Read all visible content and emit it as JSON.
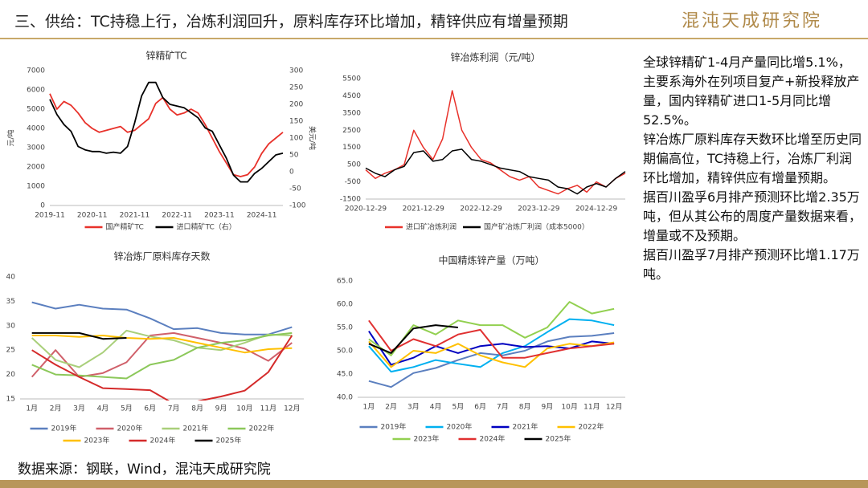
{
  "header": {
    "title": "三、供给：TC持稳上行，冶炼利润回升，原料库存环比增加，精锌供应有增量预期",
    "logo": "混沌天成研究院"
  },
  "notes": [
    "全球锌精矿1-4月产量同比增5.1%，主要系海外在列项目复产+新投释放产量，国内锌精矿进口1-5月同比增52.5%。",
    "锌冶炼厂原料库存天数环比增至历史同期偏高位，TC持稳上行，冶炼厂利润环比增加，精锌供应有增量预期。",
    "据百川盈孚6月排产预测环比增2.35万吨，但从其公布的周度产量数据来看，增量或不及预期。",
    "据百川盈孚7月排产预测环比增1.17万吨。"
  ],
  "source": "数据来源：钢联，Wind，混沌天成研究院",
  "chart_data": [
    {
      "type": "line",
      "title": "锌精矿TC",
      "yaxis_label": "元/吨",
      "y2axis_label": "美元/吨",
      "categories": [
        "2019-11",
        null,
        null,
        null,
        null,
        null,
        "2020-11",
        null,
        null,
        null,
        null,
        null,
        "2021-11",
        null,
        null,
        null,
        null,
        null,
        "2022-11",
        null,
        null,
        null,
        null,
        null,
        "2023-11",
        null,
        null,
        null,
        null,
        null,
        "2024-11",
        null,
        null,
        null
      ],
      "series": [
        {
          "name": "国产精矿TC",
          "color": "#e8312a",
          "values": [
            5800,
            5000,
            5400,
            5200,
            4800,
            4300,
            4000,
            3800,
            3900,
            4000,
            4100,
            3800,
            3900,
            4200,
            4500,
            5300,
            5600,
            5000,
            4700,
            4800,
            5000,
            4800,
            4200,
            3500,
            2800,
            2200,
            1600,
            1500,
            1600,
            2000,
            2700,
            3200,
            3500,
            3800
          ]
        },
        {
          "name": "进口精矿TC（右）",
          "color": "#000000",
          "axis": "y2",
          "values": [
            215,
            170,
            140,
            120,
            75,
            65,
            60,
            60,
            55,
            58,
            55,
            75,
            145,
            225,
            265,
            265,
            220,
            200,
            195,
            190,
            175,
            160,
            130,
            120,
            80,
            40,
            -10,
            -30,
            -30,
            -5,
            10,
            30,
            50,
            55
          ]
        }
      ],
      "ylim": [
        0,
        7000
      ],
      "yticks": [
        0,
        1000,
        2000,
        3000,
        4000,
        5000,
        6000,
        7000
      ],
      "y2lim": [
        -100,
        300
      ],
      "y2ticks": [
        -100,
        -50,
        0,
        50,
        100,
        150,
        200,
        250,
        300
      ]
    },
    {
      "type": "line",
      "title": "锌冶炼利润（元/吨）",
      "categories": [
        "2020-12-29",
        null,
        null,
        null,
        null,
        null,
        "2021-12-29",
        null,
        null,
        null,
        null,
        null,
        "2022-12-29",
        null,
        null,
        null,
        null,
        null,
        "2023-12-29",
        null,
        null,
        null,
        null,
        null,
        "2024-12-29",
        null,
        null,
        null
      ],
      "series": [
        {
          "name": "进口矿冶炼利润",
          "color": "#e8312a",
          "values": [
            200,
            -300,
            0,
            200,
            500,
            2500,
            1500,
            800,
            2000,
            4800,
            2500,
            1500,
            800,
            600,
            200,
            -200,
            -400,
            -200,
            -800,
            -1000,
            -1200,
            -900,
            -700,
            -1100,
            -500,
            -800,
            -300,
            0
          ]
        },
        {
          "name": "国产矿冶炼厂利润（成本5000）",
          "color": "#000000",
          "values": [
            300,
            0,
            -200,
            200,
            400,
            1200,
            1300,
            700,
            800,
            1300,
            1400,
            800,
            700,
            500,
            300,
            200,
            100,
            -200,
            -300,
            -400,
            -800,
            -900,
            -1200,
            -800,
            -600,
            -800,
            -300,
            100
          ]
        }
      ],
      "ylim": [
        -1500,
        5500
      ],
      "yticks": [
        -1500,
        -500,
        500,
        1500,
        2500,
        3500,
        4500,
        5500
      ]
    },
    {
      "type": "line",
      "title": "锌冶炼厂原料库存天数",
      "categories": [
        "1月",
        "2月",
        "3月",
        "4月",
        "5月",
        "6月",
        "7月",
        "8月",
        "9月",
        "10月",
        "11月",
        "12月"
      ],
      "series": [
        {
          "name": "2019年",
          "color": "#5b7fbf",
          "values": [
            34.8,
            33.5,
            34.3,
            33.5,
            33.3,
            31.5,
            29.3,
            29.5,
            28.5,
            28.2,
            28.2,
            29.7
          ]
        },
        {
          "name": "2020年",
          "color": "#d0606a",
          "values": [
            19.5,
            25,
            19.5,
            20.3,
            22.5,
            28,
            28.5,
            27.5,
            26.5,
            25.3,
            22.8,
            26.5
          ]
        },
        {
          "name": "2021年",
          "color": "#a9cf7a",
          "values": [
            27.5,
            23,
            21.5,
            24.5,
            29,
            27.8,
            27,
            25.5,
            25,
            26.5,
            28.2,
            28
          ]
        },
        {
          "name": "2022年",
          "color": "#8cc85a",
          "values": [
            22,
            20,
            19.8,
            19.5,
            19.2,
            22,
            23,
            25.5,
            26.5,
            27,
            28,
            28.5
          ]
        },
        {
          "name": "2023年",
          "color": "#ffc000",
          "values": [
            28,
            28,
            27.7,
            28,
            27.5,
            27.3,
            27.5,
            26.5,
            25.5,
            24.5,
            25.2,
            25.4
          ]
        },
        {
          "name": "2024年",
          "color": "#d42a2a",
          "values": [
            25,
            22,
            19.5,
            17.2,
            17,
            16.8,
            14,
            14.5,
            15.5,
            16.7,
            20.5,
            28
          ]
        },
        {
          "name": "2025年",
          "color": "#000000",
          "values": [
            28.5,
            28.5,
            28.5,
            27.3,
            27.5,
            null,
            null,
            null,
            null,
            null,
            null,
            null
          ]
        }
      ],
      "ylim": [
        15,
        40
      ],
      "yticks": [
        15,
        20,
        25,
        30,
        35,
        40
      ]
    },
    {
      "type": "line",
      "title": "中国精炼锌产量（万吨）",
      "categories": [
        "1月",
        "2月",
        "3月",
        "4月",
        "5月",
        "6月",
        "7月",
        "8月",
        "9月",
        "10月",
        "11月",
        "12月"
      ],
      "series": [
        {
          "name": "2019年",
          "color": "#5b7fbf",
          "values": [
            43.5,
            42.2,
            45.2,
            46.3,
            48,
            49.5,
            49,
            50,
            52,
            53,
            53.2,
            53.8
          ]
        },
        {
          "name": "2020年",
          "color": "#00b0f0",
          "values": [
            51,
            45.5,
            46.5,
            48,
            47.2,
            46.5,
            49.5,
            51,
            54,
            56.8,
            56.5,
            55.5
          ]
        },
        {
          "name": "2021年",
          "color": "#0000c0",
          "values": [
            54.2,
            47,
            48.5,
            51,
            49.5,
            51,
            51.5,
            50.8,
            51,
            50.5,
            52,
            51.5
          ]
        },
        {
          "name": "2022年",
          "color": "#ffc000",
          "values": [
            52,
            46.5,
            50,
            49.5,
            51.5,
            49,
            47.5,
            46.5,
            50.5,
            51.5,
            51,
            51.8
          ]
        },
        {
          "name": "2023年",
          "color": "#92d050",
          "values": [
            52.5,
            49,
            55.5,
            53.5,
            56.5,
            55.5,
            55.5,
            52.8,
            55,
            60.5,
            58,
            59
          ]
        },
        {
          "name": "2024年",
          "color": "#e03030",
          "values": [
            56.5,
            50,
            52.5,
            51,
            53.5,
            54.5,
            48.5,
            48.5,
            49.5,
            50.5,
            51,
            51.5
          ]
        },
        {
          "name": "2025年",
          "color": "#000000",
          "values": [
            51.5,
            49.5,
            54.8,
            55.5,
            55,
            null,
            null,
            null,
            null,
            null,
            null,
            null
          ]
        }
      ],
      "ylim": [
        40,
        65
      ],
      "yticks": [
        {
          "value": 40,
          "label": "40.0"
        },
        {
          "value": 45,
          "label": "45.0"
        },
        {
          "value": 50,
          "label": "50.0"
        },
        {
          "value": 55,
          "label": "55.0"
        },
        {
          "value": 60,
          "label": "60.0"
        },
        {
          "value": 65,
          "label": "65.0"
        }
      ]
    }
  ]
}
